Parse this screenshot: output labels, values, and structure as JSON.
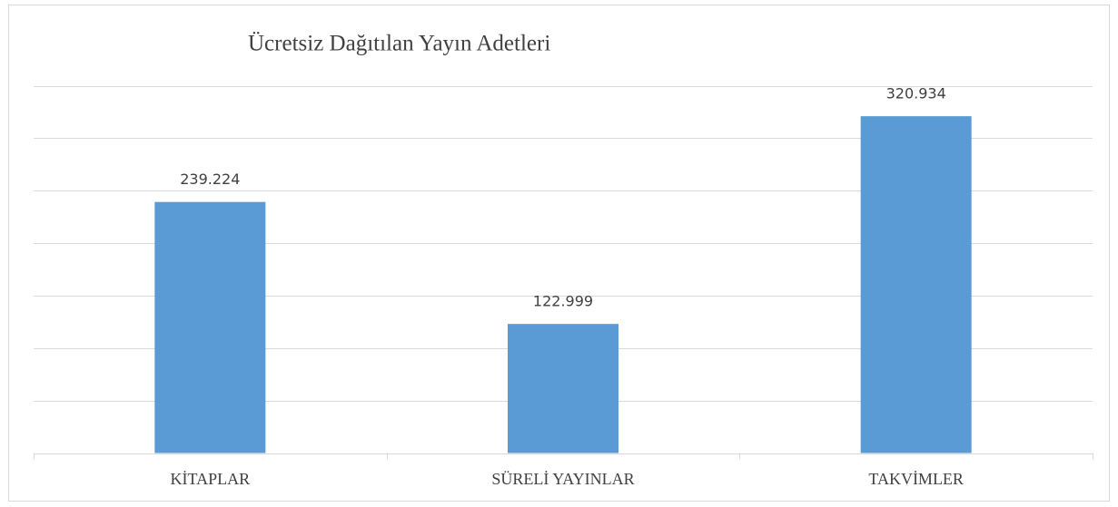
{
  "chart_data": {
    "type": "bar",
    "title": "Ücretsiz Dağıtılan Yayın Adetleri",
    "categories": [
      "KİTAPLAR",
      "SÜRELİ YAYINLAR",
      "TAKVİMLER"
    ],
    "values": [
      239224,
      122999,
      320934
    ],
    "value_labels": [
      "239.224",
      "122.999",
      "320.934"
    ],
    "color": "#5b9bd5",
    "ylim": [
      0,
      350000
    ],
    "yticks": [
      0,
      50000,
      100000,
      150000,
      200000,
      250000,
      300000,
      350000
    ],
    "grid": true
  }
}
